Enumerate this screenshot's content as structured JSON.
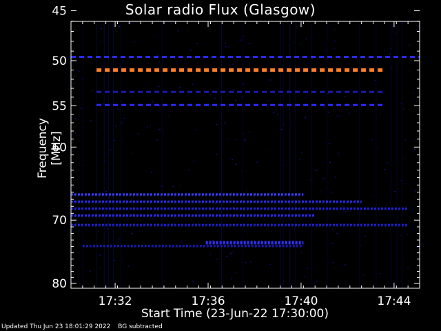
{
  "chart_data": {
    "type": "heatmap",
    "title": "Solar radio Flux (Glasgow)",
    "ylabel": "Frequency [MHz]",
    "xlabel": "Start Time (23-Jun-22 17:30:00)",
    "x_range_minutes": [
      0,
      15.0
    ],
    "x_ticks": [
      {
        "label": "17:32",
        "minute": 1.9
      },
      {
        "label": "17:36",
        "minute": 5.9
      },
      {
        "label": "17:40",
        "minute": 9.9
      },
      {
        "label": "17:44",
        "minute": 13.9
      }
    ],
    "y_range_mhz": [
      45,
      80
    ],
    "y_ticks": [
      45,
      50,
      55,
      60,
      70,
      80
    ],
    "y_tick_labels": [
      "45",
      "50",
      "55",
      "60",
      "70",
      "80"
    ],
    "features": [
      {
        "name": "interference-band",
        "freq_mhz": 51.0,
        "start_min": 1.1,
        "end_min": 13.5,
        "level": "high",
        "color": "#ff7f27"
      },
      {
        "name": "interference-band",
        "freq_mhz": 49.6,
        "start_min": 0.0,
        "end_min": 15.0,
        "level": "medium",
        "color": "#2a2aff"
      },
      {
        "name": "interference-band",
        "freq_mhz": 53.4,
        "start_min": 1.1,
        "end_min": 13.5,
        "level": "low",
        "color": "#1a1ab0"
      },
      {
        "name": "interference-band",
        "freq_mhz": 54.9,
        "start_min": 1.1,
        "end_min": 13.5,
        "level": "medium",
        "color": "#2a2aff"
      },
      {
        "name": "emission-band",
        "freq_mhz": 66.3,
        "start_min": 0.0,
        "end_min": 10.0,
        "level": "medium",
        "color": "#3a3aff"
      },
      {
        "name": "emission-band",
        "freq_mhz": 67.3,
        "start_min": 0.0,
        "end_min": 12.5,
        "level": "medium",
        "color": "#2a2af0"
      },
      {
        "name": "emission-band",
        "freq_mhz": 68.3,
        "start_min": 0.0,
        "end_min": 14.5,
        "level": "low",
        "color": "#2020d0"
      },
      {
        "name": "emission-band",
        "freq_mhz": 69.3,
        "start_min": 0.0,
        "end_min": 10.5,
        "level": "medium",
        "color": "#2a2af0"
      },
      {
        "name": "emission-band",
        "freq_mhz": 70.7,
        "start_min": 0.0,
        "end_min": 14.5,
        "level": "low",
        "color": "#1f1fc8"
      },
      {
        "name": "emission-band",
        "freq_mhz": 73.4,
        "start_min": 5.8,
        "end_min": 10.0,
        "level": "high",
        "color": "#3030ff"
      },
      {
        "name": "emission-band",
        "freq_mhz": 73.9,
        "start_min": 0.5,
        "end_min": 10.0,
        "level": "low",
        "color": "#1818a8"
      }
    ]
  },
  "footer": {
    "updated": "Updated Thu Jun 23 18:01:29 2022",
    "note": "BG subtracted"
  }
}
